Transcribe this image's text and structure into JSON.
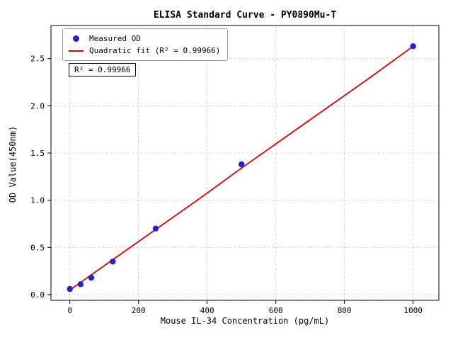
{
  "chart_data": {
    "type": "scatter",
    "title": "ELISA Standard Curve - PY0890Mu-T",
    "xlabel": "Mouse IL-34 Concentration (pg/mL)",
    "ylabel": "OD Value(450nm)",
    "xlim": [
      -55,
      1075
    ],
    "ylim": [
      -0.06,
      2.85
    ],
    "xticks": [
      0,
      200,
      400,
      600,
      800,
      1000
    ],
    "yticks": [
      0.0,
      0.5,
      1.0,
      1.5,
      2.0,
      2.5
    ],
    "grid": true,
    "grid_style": "dashed",
    "legend_position": "upper-left",
    "series": [
      {
        "name": "Quadratic fit (R² = 0.99966)",
        "type": "line",
        "color": "#dd0000",
        "x": [
          0,
          125,
          250,
          375,
          500,
          625,
          750,
          875,
          1000
        ],
        "y": [
          0.05,
          0.37,
          0.69,
          1.01,
          1.34,
          1.66,
          1.98,
          2.3,
          2.63
        ]
      },
      {
        "name": "Measured OD",
        "type": "scatter",
        "color": "#2222cc",
        "x": [
          0,
          31.25,
          62.5,
          125,
          250,
          500,
          1000
        ],
        "y": [
          0.06,
          0.11,
          0.18,
          0.35,
          0.7,
          1.38,
          2.63
        ]
      }
    ],
    "annotation": "R² = 0.99966",
    "r_squared": 0.99966
  }
}
